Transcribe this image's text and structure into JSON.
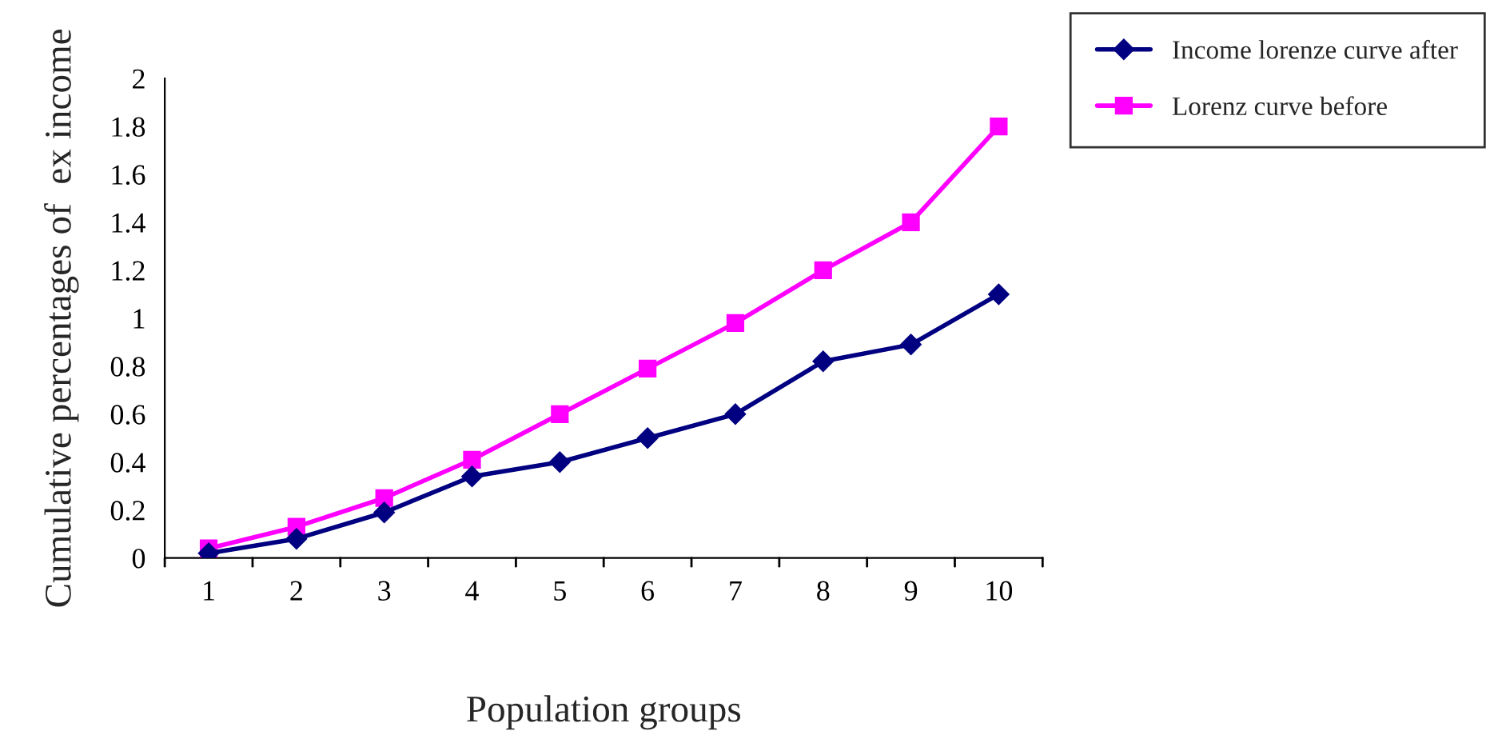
{
  "chart_data": {
    "type": "line",
    "xlabel": "Population groups",
    "ylabel": "Cumulative percentages of  ex income",
    "categories": [
      "1",
      "2",
      "3",
      "4",
      "5",
      "6",
      "7",
      "8",
      "9",
      "10"
    ],
    "series": [
      {
        "name": "Income lorenze curve after",
        "color": "#000080",
        "marker": "diamond",
        "values": [
          0.02,
          0.08,
          0.19,
          0.34,
          0.4,
          0.5,
          0.6,
          0.82,
          0.89,
          1.1
        ]
      },
      {
        "name": "Lorenz curve before",
        "color": "#ff00ff",
        "marker": "square",
        "values": [
          0.04,
          0.13,
          0.25,
          0.41,
          0.6,
          0.79,
          0.98,
          1.2,
          1.4,
          1.8
        ]
      }
    ],
    "ylim": [
      0,
      2
    ],
    "yticks": [
      0,
      0.2,
      0.4,
      0.6,
      0.8,
      1,
      1.2,
      1.4,
      1.6,
      1.8,
      2
    ],
    "legend": "top right",
    "line_style": "solid"
  }
}
